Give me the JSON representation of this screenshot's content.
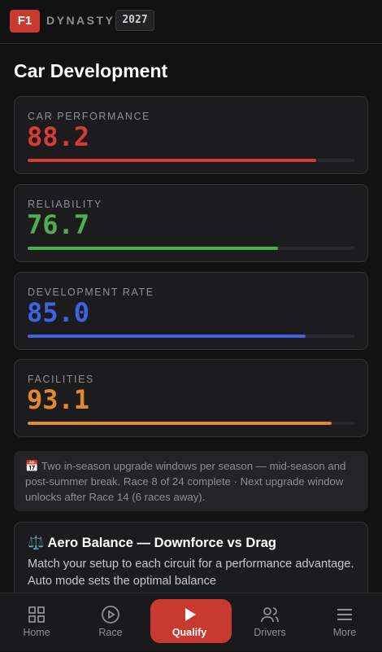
{
  "header": {
    "badge": "F1",
    "brand": "DYNASTY",
    "year": "2027"
  },
  "page_title": "Car Development",
  "stats": {
    "xlim": [
      0,
      100
    ],
    "items": [
      {
        "name": "CAR PERFORMANCE",
        "value": 88.2,
        "color": "#d63c34"
      },
      {
        "name": "RELIABILITY",
        "value": 76.7,
        "color": "#4fae4f"
      },
      {
        "name": "DEVELOPMENT RATE",
        "value": 85.0,
        "value_label": "85.0",
        "color": "#3d63e0"
      },
      {
        "name": "FACILITIES",
        "value": 93.1,
        "color": "#df8a2e"
      }
    ]
  },
  "note": "📅 Two in-season upgrade windows per season — mid-season and post-summer break. Race 8 of 24 complete · Next upgrade window unlocks after Race 14 (6 races away).",
  "card": {
    "title": "⚖️ Aero Balance — Downforce vs Drag",
    "text": "Match your setup to each circuit for a performance advantage. Auto mode sets the optimal balance"
  },
  "nav": [
    {
      "label": "Home"
    },
    {
      "label": "Race"
    },
    {
      "label": "Qualify",
      "active": true
    },
    {
      "label": "Drivers"
    },
    {
      "label": "More"
    }
  ]
}
